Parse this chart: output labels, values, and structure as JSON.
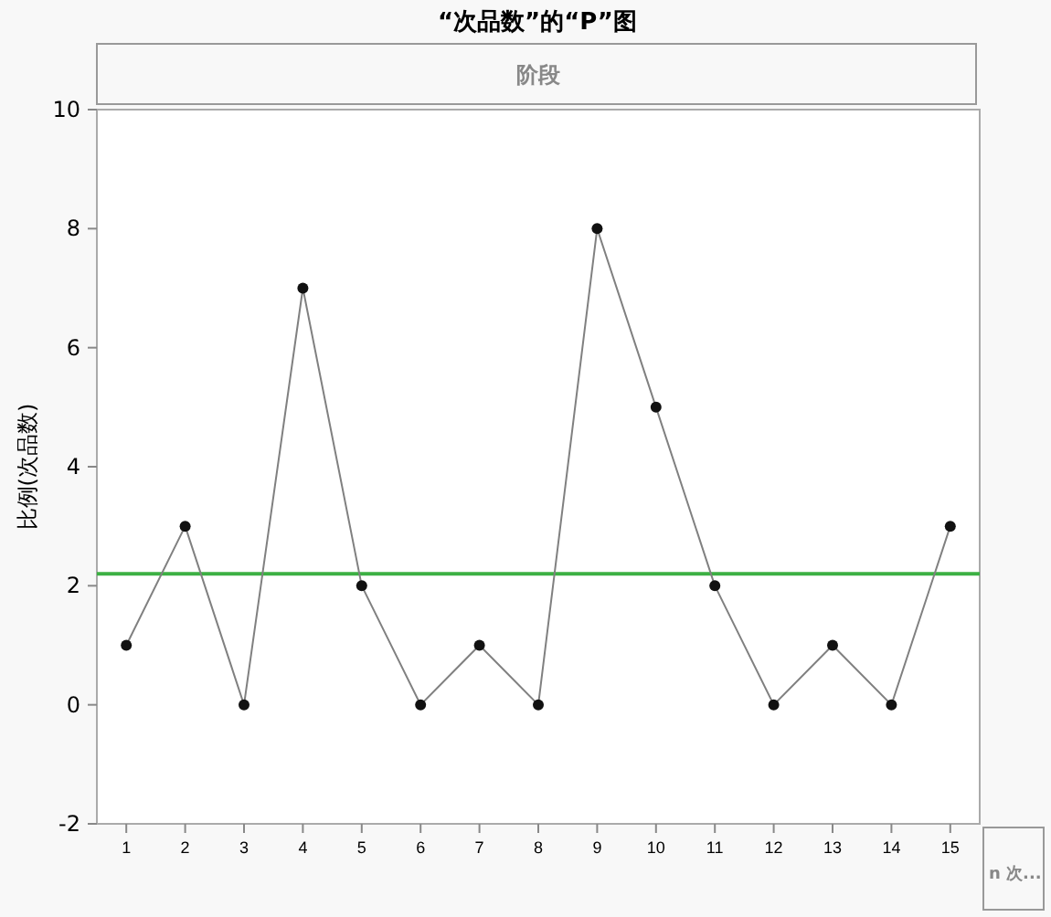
{
  "chart_data": {
    "type": "line",
    "title": "“次品数”的“P”图",
    "ylabel": "比例(次品数)",
    "x": [
      1,
      2,
      3,
      4,
      5,
      6,
      7,
      8,
      9,
      10,
      11,
      12,
      13,
      14,
      15
    ],
    "xlim": [
      0.5,
      15.5
    ],
    "xticks": [
      1,
      2,
      3,
      4,
      5,
      6,
      7,
      8,
      9,
      10,
      11,
      12,
      13,
      14,
      15
    ],
    "series": [
      {
        "color": "#808080",
        "values": [
          1,
          3,
          0,
          7,
          2,
          0,
          1,
          0,
          8,
          5,
          2,
          0,
          1,
          0,
          3
        ]
      }
    ],
    "ylim": [
      -2,
      10
    ],
    "yticks": [
      -2,
      0,
      2,
      4,
      6,
      8,
      10
    ],
    "ref_lines": [
      {
        "axis": "y",
        "value": 2.2,
        "color": "#3cb043"
      }
    ],
    "annotations": [
      "阶段",
      "n 次..."
    ],
    "marker": "circle",
    "grid": false
  }
}
